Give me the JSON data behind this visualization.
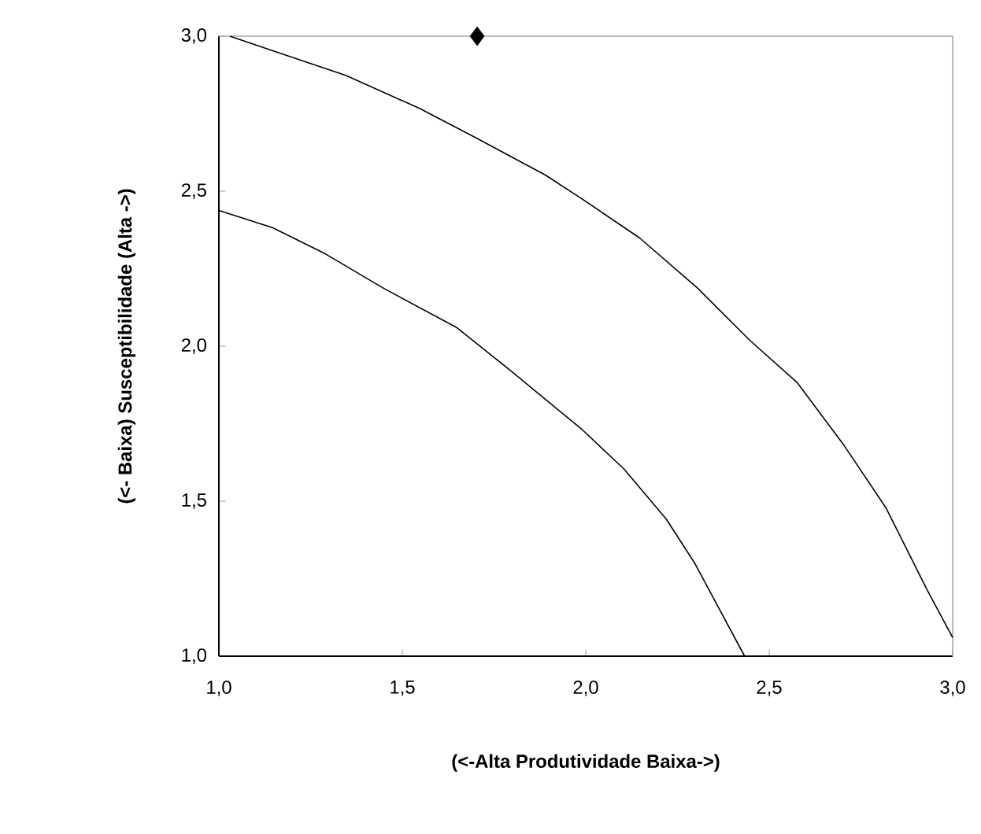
{
  "chart_data": {
    "type": "line",
    "xlabel": "(<-Alta Produtividade Baixa->)",
    "ylabel": "(<- Baixa) Susceptibilidade (Alta ->)",
    "series": [
      {
        "color": "#000000",
        "x": [
          1.03,
          1.147,
          1.347,
          1.547,
          1.704,
          1.89,
          1.99,
          2.147,
          2.304,
          2.447,
          2.576,
          2.704,
          2.819,
          2.93,
          3.0
        ],
        "values": [
          3.0,
          2.953,
          2.873,
          2.767,
          2.67,
          2.552,
          2.475,
          2.349,
          2.188,
          2.019,
          1.883,
          1.68,
          1.477,
          1.215,
          1.06
        ]
      },
      {
        "color": "#000000",
        "x": [
          1.0,
          1.147,
          1.29,
          1.447,
          1.647,
          1.79,
          1.99,
          2.104,
          2.219,
          2.297,
          2.433
        ],
        "values": [
          2.438,
          2.382,
          2.298,
          2.188,
          2.061,
          1.926,
          1.731,
          1.604,
          1.443,
          1.3,
          1.0
        ]
      },
      {
        "type": "scatter",
        "marker": "diamond",
        "color": "#000000",
        "x": [
          1.704
        ],
        "values": [
          3.0
        ]
      }
    ],
    "xlim": [
      1,
      3
    ],
    "ylim": [
      1,
      3
    ],
    "xticks": [
      {
        "value": 1,
        "label": "1,0"
      },
      {
        "value": 1.5,
        "label": "1,5"
      },
      {
        "value": 2,
        "label": "2,0"
      },
      {
        "value": 2.5,
        "label": "2,5"
      },
      {
        "value": 3,
        "label": "3,0"
      }
    ],
    "yticks": [
      {
        "value": 1,
        "label": "1,0"
      },
      {
        "value": 1.5,
        "label": "1,5"
      },
      {
        "value": 2,
        "label": "2,0"
      },
      {
        "value": 2.5,
        "label": "2,5"
      },
      {
        "value": 3,
        "label": "3,0"
      }
    ],
    "grid": false
  }
}
